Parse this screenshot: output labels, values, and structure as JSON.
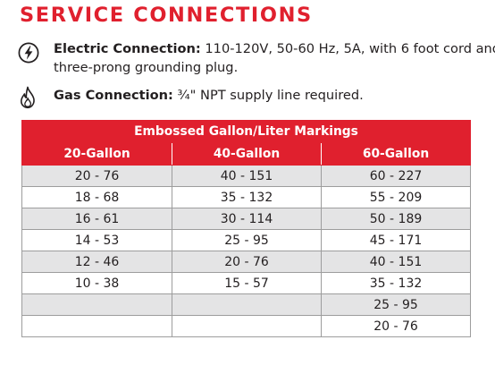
{
  "heading": "SERVICE CONNECTIONS",
  "electric": {
    "icon": "lightning-bolt-icon",
    "label": "Electric Connection:",
    "line1": " 110-120V, 50-60 Hz, 5A, with 6 foot cord and",
    "line2": "three-prong grounding plug."
  },
  "gas": {
    "icon": "flame-icon",
    "label": "Gas Connection:",
    "text": " ¾\" NPT supply line required."
  },
  "colors": {
    "accent": "#e0202e",
    "row_shade": "#e4e4e5",
    "grid": "#9d9d9d"
  },
  "table": {
    "caption": "Embossed Gallon/Liter Markings",
    "headers": [
      "20-Gallon",
      "40-Gallon",
      "60-Gallon"
    ],
    "rows": [
      [
        "20 - 76",
        "40 - 151",
        "60 - 227"
      ],
      [
        "18 - 68",
        "35 - 132",
        "55 - 209"
      ],
      [
        "16 - 61",
        "30 - 114",
        "50 - 189"
      ],
      [
        "14 - 53",
        "25 - 95",
        "45 - 171"
      ],
      [
        "12 - 46",
        "20 - 76",
        "40 - 151"
      ],
      [
        "10 - 38",
        "15 - 57",
        "35 - 132"
      ],
      [
        "",
        "",
        "25 - 95"
      ],
      [
        "",
        "",
        "20 - 76"
      ]
    ]
  }
}
